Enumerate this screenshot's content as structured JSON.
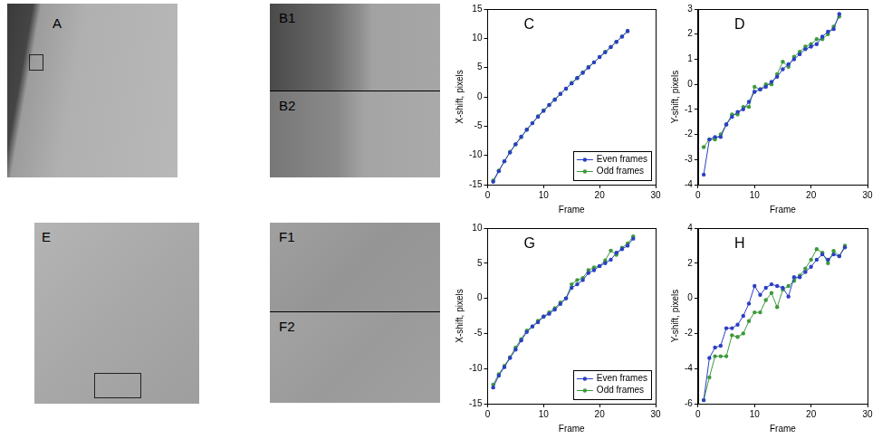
{
  "images": [
    {
      "panel_label": "A"
    },
    {
      "panel_label": "B1"
    },
    {
      "panel_label": "B2"
    },
    {
      "panel_label": "E"
    },
    {
      "panel_label": "F1"
    },
    {
      "panel_label": "F2"
    }
  ],
  "chart_data": [
    {
      "type": "line",
      "panel_label": "C",
      "xlabel": "Frame",
      "ylabel": "X-shift, pixels",
      "xlim": [
        0,
        30
      ],
      "xticks": [
        0,
        10,
        20,
        30
      ],
      "ylim": [
        -15,
        15
      ],
      "yticks": [
        -15,
        -10,
        -5,
        0,
        5,
        10,
        15
      ],
      "grid": false,
      "legend": "lower right",
      "series": [
        {
          "name": "Even frames",
          "color": "#2b3fc4",
          "marker": "circle",
          "line_style": "solid",
          "x": [
            1,
            2,
            3,
            4,
            5,
            6,
            7,
            8,
            9,
            10,
            11,
            12,
            13,
            14,
            15,
            16,
            17,
            18,
            19,
            20,
            21,
            22,
            23,
            24,
            25
          ],
          "values": [
            -14.5,
            -12.7,
            -11.0,
            -9.5,
            -8.1,
            -6.8,
            -5.6,
            -4.5,
            -3.4,
            -2.4,
            -1.4,
            -0.5,
            0.5,
            1.4,
            2.3,
            3.2,
            4.1,
            5.0,
            5.9,
            6.8,
            7.6,
            8.5,
            9.4,
            10.3,
            11.2
          ]
        },
        {
          "name": "Odd frames",
          "color": "#3c9a3c",
          "marker": "circle",
          "line_style": "solid",
          "x": [
            1,
            2,
            3,
            4,
            5,
            6,
            7,
            8,
            9,
            10,
            11,
            12,
            13,
            14,
            15,
            16,
            17,
            18,
            19,
            20,
            21,
            22,
            23,
            24,
            25
          ],
          "values": [
            -14.3,
            -12.6,
            -11.0,
            -9.4,
            -8.1,
            -6.9,
            -5.6,
            -4.5,
            -3.3,
            -2.3,
            -1.4,
            -0.4,
            0.5,
            1.4,
            2.4,
            3.2,
            4.2,
            5.1,
            5.9,
            6.8,
            7.7,
            8.5,
            9.4,
            10.3,
            11.3
          ]
        }
      ]
    },
    {
      "type": "line",
      "panel_label": "D",
      "xlabel": "Frame",
      "ylabel": "Y-shift, pixels",
      "xlim": [
        0,
        30
      ],
      "xticks": [
        0,
        10,
        20,
        30
      ],
      "ylim": [
        -4,
        3
      ],
      "yticks": [
        -4,
        -3,
        -2,
        -1,
        0,
        1,
        2,
        3
      ],
      "grid": false,
      "series": [
        {
          "name": "Even frames",
          "color": "#2b3fc4",
          "marker": "circle",
          "line_style": "solid",
          "x": [
            1,
            2,
            3,
            4,
            5,
            6,
            7,
            8,
            9,
            10,
            11,
            12,
            13,
            14,
            15,
            16,
            17,
            18,
            19,
            20,
            21,
            22,
            23,
            24,
            25
          ],
          "values": [
            -3.6,
            -2.2,
            -2.1,
            -2.1,
            -1.6,
            -1.3,
            -1.1,
            -1.0,
            -0.7,
            -0.3,
            -0.2,
            -0.1,
            0.1,
            0.3,
            0.6,
            0.8,
            1.0,
            1.2,
            1.4,
            1.5,
            1.6,
            1.9,
            2.1,
            2.2,
            2.8
          ]
        },
        {
          "name": "Odd frames",
          "color": "#3c9a3c",
          "marker": "circle",
          "line_style": "solid",
          "x": [
            1,
            2,
            3,
            4,
            5,
            6,
            7,
            8,
            9,
            10,
            11,
            12,
            13,
            14,
            15,
            16,
            17,
            18,
            19,
            20,
            21,
            22,
            23,
            24,
            25
          ],
          "values": [
            -2.5,
            -2.2,
            -2.2,
            -2.0,
            -1.6,
            -1.2,
            -1.2,
            -0.9,
            -0.9,
            -0.1,
            -0.2,
            0.0,
            0.0,
            0.4,
            0.9,
            0.7,
            1.1,
            1.3,
            1.5,
            1.6,
            1.8,
            1.8,
            2.0,
            2.3,
            2.7
          ]
        }
      ]
    },
    {
      "type": "line",
      "panel_label": "G",
      "xlabel": "Frame",
      "ylabel": "X-shift, pixels",
      "xlim": [
        0,
        30
      ],
      "xticks": [
        0,
        10,
        20,
        30
      ],
      "ylim": [
        -15,
        10
      ],
      "yticks": [
        -15,
        -10,
        -5,
        0,
        5,
        10
      ],
      "grid": false,
      "legend": "lower right",
      "series": [
        {
          "name": "Even frames",
          "color": "#2b3fc4",
          "marker": "circle",
          "line_style": "solid",
          "x": [
            1,
            2,
            3,
            4,
            5,
            6,
            7,
            8,
            9,
            10,
            11,
            12,
            13,
            14,
            15,
            16,
            17,
            18,
            19,
            20,
            21,
            22,
            23,
            24,
            25,
            26
          ],
          "values": [
            -12.7,
            -11.0,
            -9.8,
            -8.5,
            -7.3,
            -6.0,
            -4.8,
            -4.0,
            -3.4,
            -2.6,
            -2.2,
            -1.6,
            -0.8,
            0.0,
            1.5,
            2.0,
            2.6,
            3.6,
            4.0,
            4.6,
            5.0,
            5.5,
            6.5,
            7.0,
            7.5,
            8.5
          ]
        },
        {
          "name": "Odd frames",
          "color": "#3c9a3c",
          "marker": "circle",
          "line_style": "solid",
          "x": [
            1,
            2,
            3,
            4,
            5,
            6,
            7,
            8,
            9,
            10,
            11,
            12,
            13,
            14,
            15,
            16,
            17,
            18,
            19,
            20,
            21,
            22,
            23,
            24,
            25,
            26
          ],
          "values": [
            -12.3,
            -10.8,
            -9.6,
            -8.4,
            -7.0,
            -5.8,
            -4.6,
            -4.0,
            -3.2,
            -2.6,
            -2.0,
            -1.4,
            -0.6,
            0.0,
            2.0,
            2.6,
            2.9,
            4.0,
            4.4,
            4.6,
            5.4,
            6.8,
            6.2,
            7.2,
            7.8,
            8.8
          ]
        }
      ]
    },
    {
      "type": "line",
      "panel_label": "H",
      "xlabel": "Frame",
      "ylabel": "Y-shift, pixels",
      "xlim": [
        0,
        30
      ],
      "xticks": [
        0,
        10,
        20,
        30
      ],
      "ylim": [
        -6,
        4
      ],
      "yticks": [
        -6,
        -4,
        -2,
        0,
        2,
        4
      ],
      "grid": false,
      "series": [
        {
          "name": "Even frames",
          "color": "#2b3fc4",
          "marker": "circle",
          "line_style": "solid",
          "x": [
            1,
            2,
            3,
            4,
            5,
            6,
            7,
            8,
            9,
            10,
            11,
            12,
            13,
            14,
            15,
            16,
            17,
            18,
            19,
            20,
            21,
            22,
            23,
            24,
            25,
            26
          ],
          "values": [
            -5.8,
            -3.4,
            -2.8,
            -2.7,
            -1.7,
            -1.7,
            -1.5,
            -1.0,
            -0.3,
            0.7,
            0.2,
            0.6,
            0.8,
            0.7,
            0.6,
            0.1,
            1.2,
            1.2,
            1.5,
            1.8,
            2.2,
            2.5,
            2.2,
            2.5,
            2.4,
            2.9
          ]
        },
        {
          "name": "Odd frames",
          "color": "#3c9a3c",
          "marker": "circle",
          "line_style": "solid",
          "x": [
            1,
            2,
            3,
            4,
            5,
            6,
            7,
            8,
            9,
            10,
            11,
            12,
            13,
            14,
            15,
            16,
            17,
            18,
            19,
            20,
            21,
            22,
            23,
            24,
            25,
            26
          ],
          "values": [
            -5.8,
            -4.5,
            -3.3,
            -3.3,
            -3.3,
            -2.1,
            -2.2,
            -2.0,
            -1.3,
            -0.8,
            -0.8,
            -0.1,
            0.3,
            -0.5,
            0.5,
            0.7,
            1.0,
            1.3,
            1.7,
            2.2,
            2.8,
            2.6,
            2.0,
            2.7,
            2.4,
            3.0
          ]
        }
      ]
    }
  ]
}
